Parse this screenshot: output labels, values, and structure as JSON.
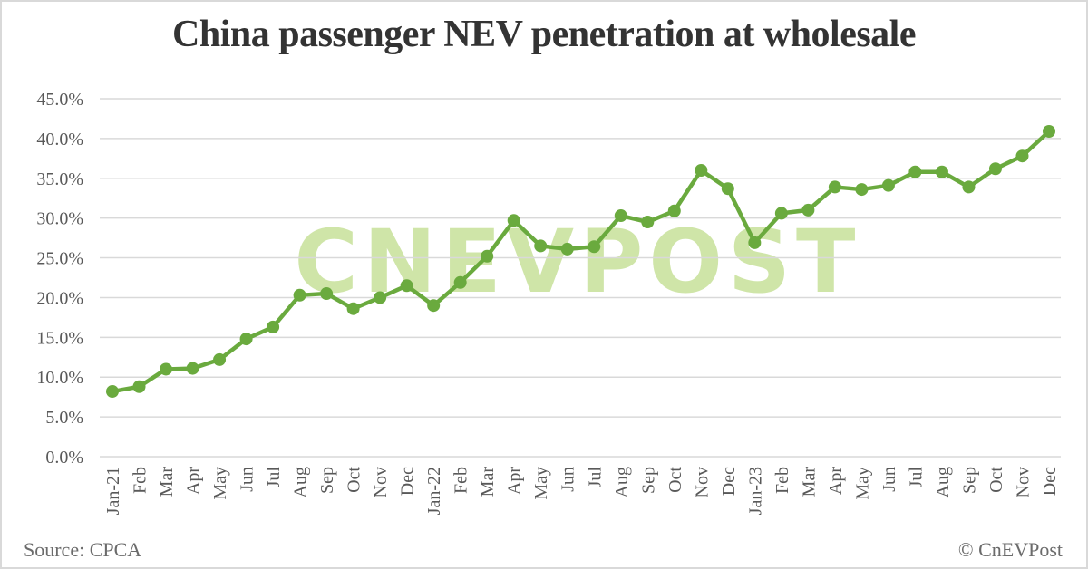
{
  "header": {
    "title": "China passenger NEV penetration at wholesale"
  },
  "footer": {
    "source": "Source: CPCA",
    "credit": "© CnEVPost"
  },
  "watermark": {
    "text": "CNEVPOST",
    "color": "#cfe5a8"
  },
  "colors": {
    "line": "#6aaa3e",
    "grid": "#d9d9d9",
    "text": "#595959",
    "title": "#333333"
  },
  "chart_data": {
    "type": "line",
    "title": "China passenger NEV penetration at wholesale",
    "xlabel": "",
    "ylabel": "",
    "ylim": [
      0,
      45
    ],
    "yticks": [
      "0.0%",
      "5.0%",
      "10.0%",
      "15.0%",
      "20.0%",
      "25.0%",
      "30.0%",
      "35.0%",
      "40.0%",
      "45.0%"
    ],
    "grid": true,
    "legend": "none",
    "categories": [
      "Jan-21",
      "Feb",
      "Mar",
      "Apr",
      "May",
      "Jun",
      "Jul",
      "Aug",
      "Sep",
      "Oct",
      "Nov",
      "Dec",
      "Jan-22",
      "Feb",
      "Mar",
      "Apr",
      "May",
      "Jun",
      "Jul",
      "Aug",
      "Sep",
      "Oct",
      "Nov",
      "Dec",
      "Jan-23",
      "Feb",
      "Mar",
      "Apr",
      "May",
      "Jun",
      "Jul",
      "Aug",
      "Sep",
      "Oct",
      "Nov",
      "Dec"
    ],
    "series": [
      {
        "name": "NEV penetration",
        "values": [
          8.2,
          8.8,
          11.0,
          11.1,
          12.2,
          14.8,
          16.3,
          20.3,
          20.5,
          18.6,
          20.0,
          21.5,
          19.0,
          21.9,
          25.2,
          29.7,
          26.5,
          26.1,
          26.4,
          30.3,
          29.5,
          30.9,
          36.0,
          33.7,
          26.9,
          30.6,
          31.0,
          33.9,
          33.6,
          34.1,
          35.8,
          35.8,
          33.9,
          36.2,
          37.8,
          40.9
        ]
      }
    ]
  }
}
